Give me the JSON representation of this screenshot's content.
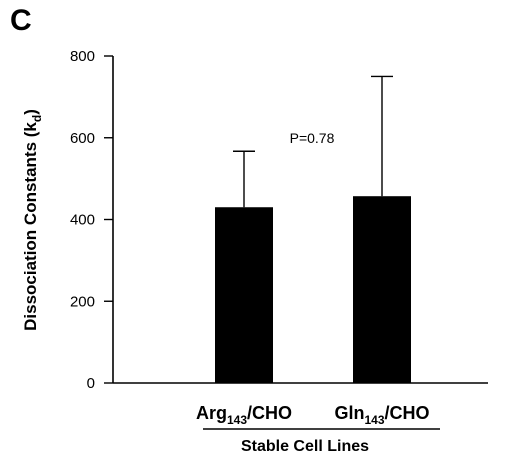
{
  "panel_label": "C",
  "chart_data": {
    "type": "bar",
    "title": "",
    "ylabel": "Dissociation Constants (k",
    "ylabel_sub": "d",
    "ylabel_close": ")",
    "xlabel": "Stable Cell Lines",
    "ylim": [
      0,
      800
    ],
    "yticks": [
      0,
      200,
      400,
      600,
      800
    ],
    "categories": [
      {
        "main": "Arg",
        "sub": "143",
        "suffix": "/CHO"
      },
      {
        "main": "Gln",
        "sub": "143",
        "suffix": "/CHO"
      }
    ],
    "values": [
      430,
      457
    ],
    "error_upper": [
      567,
      750
    ],
    "bar_color": "#000000",
    "annotation": "P=0.78",
    "grid": false
  }
}
